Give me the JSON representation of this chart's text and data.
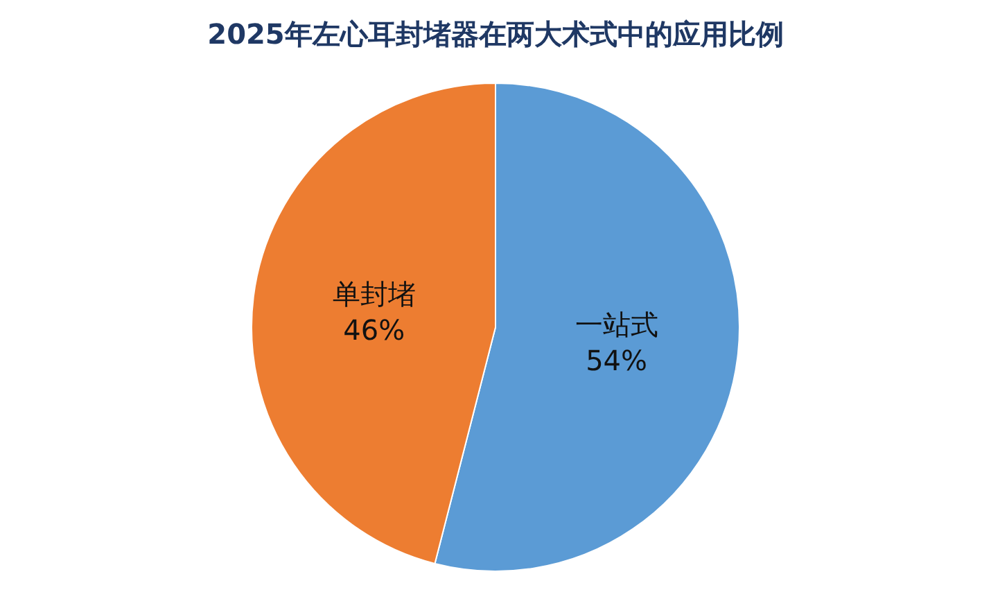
{
  "chart_data": {
    "type": "pie",
    "title": "2025年左心耳封堵器在两大术式中的应用比例",
    "categories": [
      "一站式",
      "单封堵"
    ],
    "values": [
      54,
      46
    ],
    "value_labels": [
      "54%",
      "46%"
    ],
    "colors": [
      "#5b9bd5",
      "#ed7d31"
    ],
    "legend": false
  }
}
